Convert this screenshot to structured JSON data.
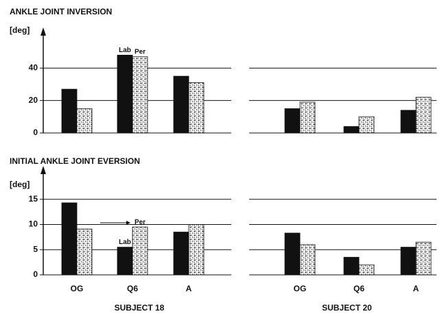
{
  "chart_data": [
    {
      "type": "bar",
      "title": "ANKLE JOINT INVERSION",
      "ylabel": "[deg]",
      "categories": [
        null,
        null,
        null
      ],
      "series": [
        {
          "name": "Lab",
          "color": "#111111",
          "values": [
            27,
            48,
            35
          ]
        },
        {
          "name": "Per",
          "color": "pattern",
          "values": [
            15,
            47,
            31
          ]
        }
      ],
      "ylim": [
        0,
        60
      ],
      "yticks": [
        0,
        20,
        40
      ],
      "y_axis": true,
      "grid": true
    },
    {
      "type": "bar",
      "categories": [
        null,
        null,
        null
      ],
      "series": [
        {
          "color": "#111111",
          "values": [
            15,
            4,
            14
          ]
        },
        {
          "color": "pattern",
          "values": [
            19,
            10,
            22
          ]
        }
      ],
      "ylim": [
        0,
        60
      ],
      "yticks": [
        0,
        20,
        40
      ],
      "y_axis": false,
      "grid": true
    },
    {
      "type": "bar",
      "title": "INITIAL ANKLE JOINT EVERSION",
      "ylabel": "[deg]",
      "xlabel": "SUBJECT 18",
      "categories": [
        "OG",
        "Q6",
        "A"
      ],
      "series": [
        {
          "name": "Lab",
          "color": "#111111",
          "values": [
            14.3,
            5.5,
            8.5
          ]
        },
        {
          "name": "Per",
          "color": "pattern",
          "values": [
            9.1,
            9.5,
            10
          ]
        }
      ],
      "ylim": [
        0,
        20
      ],
      "yticks": [
        0,
        5,
        10,
        15
      ],
      "y_axis": true,
      "grid": true
    },
    {
      "type": "bar",
      "xlabel": "SUBJECT 20",
      "categories": [
        "OG",
        "Q6",
        "A"
      ],
      "series": [
        {
          "color": "#111111",
          "values": [
            8.3,
            3.5,
            5.5
          ]
        },
        {
          "color": "pattern",
          "values": [
            6,
            2,
            6.5
          ]
        }
      ],
      "ylim": [
        0,
        20
      ],
      "yticks": [
        0,
        5,
        10,
        15
      ],
      "y_axis": false,
      "grid": true
    }
  ]
}
